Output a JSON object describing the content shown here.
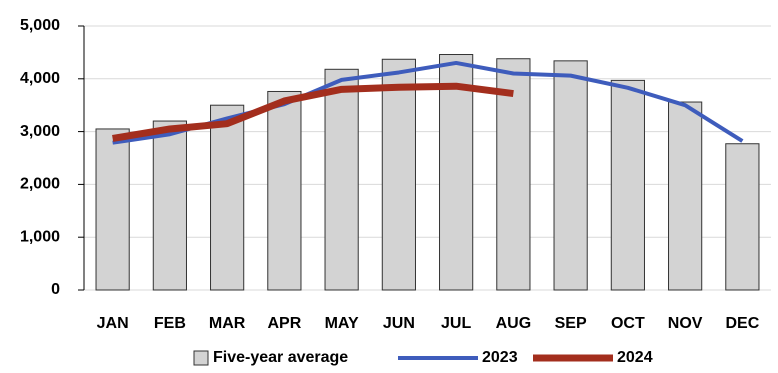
{
  "chart_data": {
    "type": "bar_line",
    "categories": [
      "JAN",
      "FEB",
      "MAR",
      "APR",
      "MAY",
      "JUN",
      "JUL",
      "AUG",
      "SEP",
      "OCT",
      "NOV",
      "DEC"
    ],
    "series": [
      {
        "name": "Five-year average",
        "type": "bar",
        "color": "#d3d3d3",
        "values": [
          3050,
          3200,
          3500,
          3760,
          4180,
          4370,
          4460,
          4380,
          4340,
          3970,
          3560,
          2770
        ]
      },
      {
        "name": "2023",
        "type": "line",
        "color": "#3e5cbc",
        "values": [
          2790,
          2950,
          3250,
          3520,
          3980,
          4120,
          4300,
          4100,
          4060,
          3830,
          3500,
          2820
        ]
      },
      {
        "name": "2024",
        "type": "line",
        "color": "#a32e1d",
        "values": [
          2870,
          3050,
          3150,
          3580,
          3800,
          3840,
          3860,
          3720,
          null,
          null,
          null,
          null
        ]
      }
    ],
    "ylim": [
      0,
      5000
    ],
    "yticks": [
      0,
      {
        "value": 1000,
        "label": "1,000"
      },
      {
        "value": 2000,
        "label": "2,000"
      },
      {
        "value": 3000,
        "label": "3,000"
      },
      {
        "value": 4000,
        "label": "4,000"
      },
      {
        "value": 5000,
        "label": "5,000"
      }
    ],
    "grid": true,
    "legend": "bottom"
  }
}
